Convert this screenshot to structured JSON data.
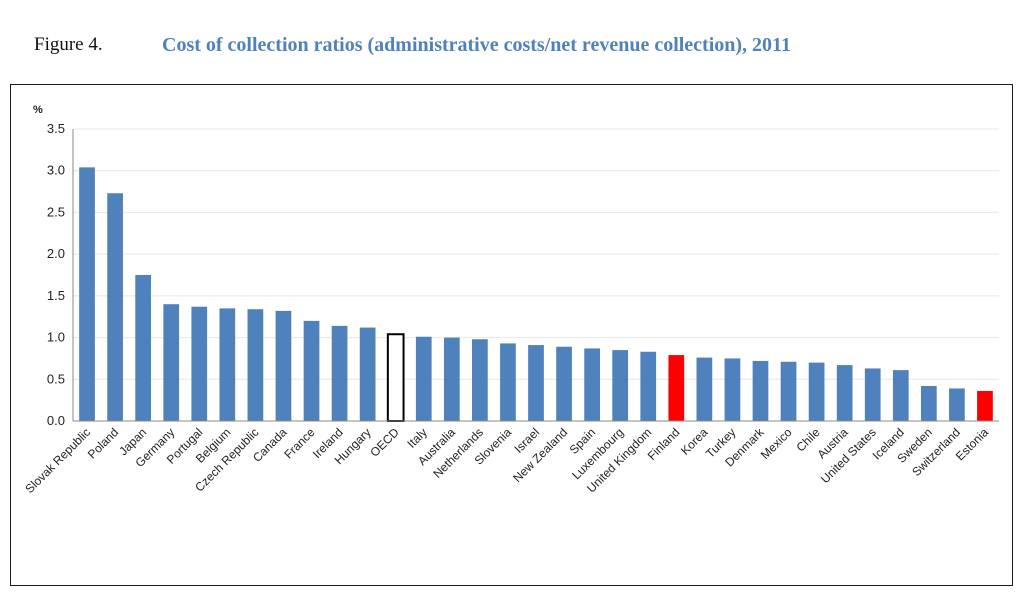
{
  "figure": {
    "label": "Figure 4.",
    "caption": "Cost of collection ratios (administrative costs/net revenue collection), 2011"
  },
  "colors": {
    "bar": "#4f81bd",
    "highlight": "#ff0000",
    "oecd_fill": "#ffffff",
    "oecd_stroke": "#000000",
    "grid": "#e8e8e8"
  },
  "chart_data": {
    "type": "bar",
    "title": "",
    "ylabel": "%",
    "xlabel": "",
    "ylim": [
      0,
      3.5
    ],
    "yticks": [
      "0.0",
      "0.5",
      "1.0",
      "1.5",
      "2.0",
      "2.5",
      "3.0",
      "3.5"
    ],
    "grid": true,
    "categories": [
      "Slovak Republic",
      "Poland",
      "Japan",
      "Germany",
      "Portugal",
      "Belgium",
      "Czech Republic",
      "Canada",
      "France",
      "Ireland",
      "Hungary",
      "OECD",
      "Italy",
      "Australia",
      "Netherlands",
      "Slovenia",
      "Israel",
      "New Zealand",
      "Spain",
      "Luxembourg",
      "United Kingdom",
      "Finland",
      "Korea",
      "Turkey",
      "Denmark",
      "Mexico",
      "Chile",
      "Austria",
      "United States",
      "Iceland",
      "Sweden",
      "Switzerland",
      "Estonia"
    ],
    "values": [
      3.04,
      2.73,
      1.75,
      1.4,
      1.37,
      1.35,
      1.34,
      1.32,
      1.2,
      1.14,
      1.12,
      1.04,
      1.01,
      1.0,
      0.98,
      0.93,
      0.91,
      0.89,
      0.87,
      0.85,
      0.83,
      0.79,
      0.76,
      0.75,
      0.72,
      0.71,
      0.7,
      0.67,
      0.63,
      0.61,
      0.42,
      0.39,
      0.36
    ],
    "highlighted": [
      "Finland",
      "Estonia"
    ],
    "outlined": [
      "OECD"
    ]
  }
}
